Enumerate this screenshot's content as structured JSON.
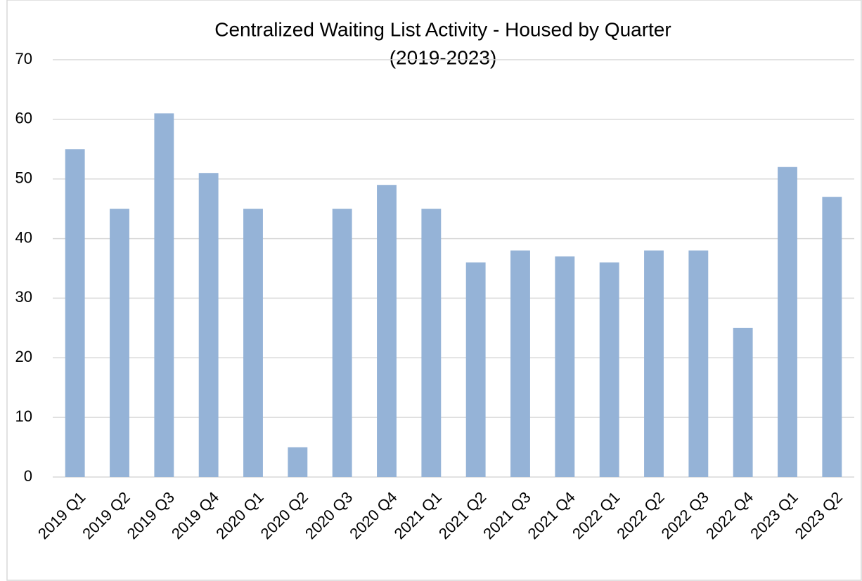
{
  "chart_data": {
    "type": "bar",
    "title": "Centralized Waiting List Activity - Housed by Quarter",
    "subtitle": "(2019-2023)",
    "categories": [
      "2019 Q1",
      "2019 Q2",
      "2019 Q3",
      "2019 Q4",
      "2020 Q1",
      "2020 Q2",
      "2020 Q3",
      "2020 Q4",
      "2021 Q1",
      "2021 Q2",
      "2021 Q3",
      "2021 Q4",
      "2022 Q1",
      "2022 Q2",
      "2022 Q3",
      "2022 Q4",
      "2023 Q1",
      "2023 Q2"
    ],
    "values": [
      55,
      45,
      61,
      51,
      45,
      5,
      45,
      49,
      45,
      36,
      38,
      37,
      36,
      38,
      38,
      25,
      52,
      47
    ],
    "color": "#95b3d7",
    "ylim": [
      0,
      70
    ],
    "yticks": [
      0,
      10,
      20,
      30,
      40,
      50,
      60,
      70
    ],
    "grid": true
  }
}
